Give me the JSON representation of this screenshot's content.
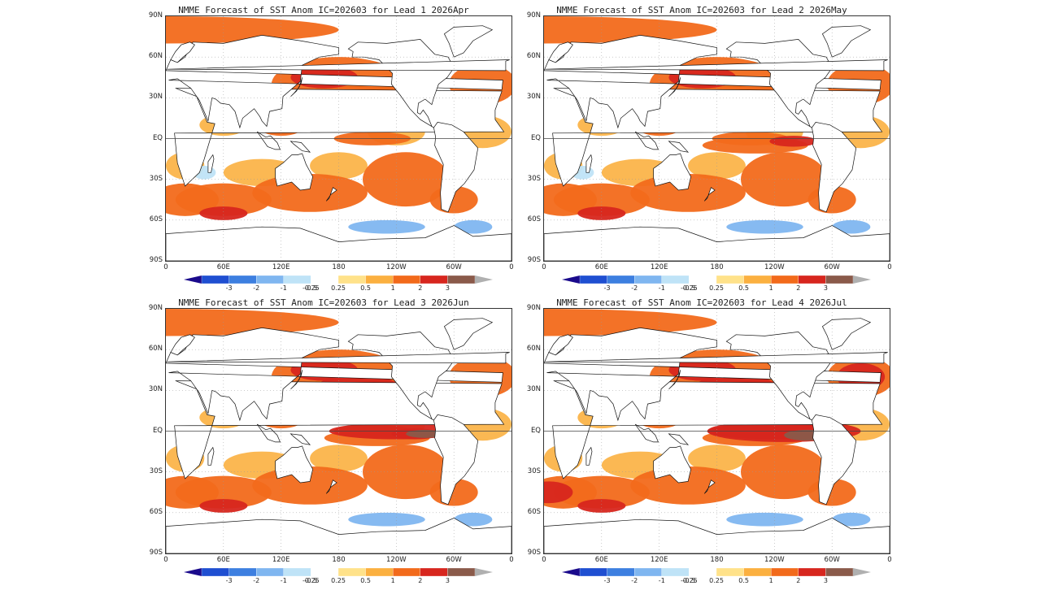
{
  "panels": [
    {
      "title": "NMME Forecast of SST Anom IC=202603 for Lead 1 2026Apr",
      "lead": 1
    },
    {
      "title": "NMME Forecast of SST Anom IC=202603 for Lead 2 2026May",
      "lead": 2
    },
    {
      "title": "NMME Forecast of SST Anom IC=202603 for Lead 3 2026Jun",
      "lead": 3
    },
    {
      "title": "NMME Forecast of SST Anom IC=202603 for Lead 4 2026Jul",
      "lead": 4
    }
  ],
  "lat_ticks": [
    "90N",
    "60N",
    "30N",
    "EQ",
    "30S",
    "60S",
    "90S"
  ],
  "lon_ticks": [
    "0",
    "60E",
    "120E",
    "180",
    "120W",
    "60W",
    "0"
  ],
  "colorbar": {
    "labels": [
      "-3",
      "-2",
      "-1",
      "-0.5",
      "-0.25",
      "0.25",
      "0.5",
      "1",
      "2",
      "3"
    ],
    "colors": [
      "#1a0a8c",
      "#1f4fd1",
      "#3d7fe0",
      "#7fb6f0",
      "#bfe3f7",
      "#ffffff",
      "#ffe28a",
      "#fbb040",
      "#f26a1b",
      "#d7261e",
      "#8a5a4a",
      "#b0b0b0"
    ]
  }
}
